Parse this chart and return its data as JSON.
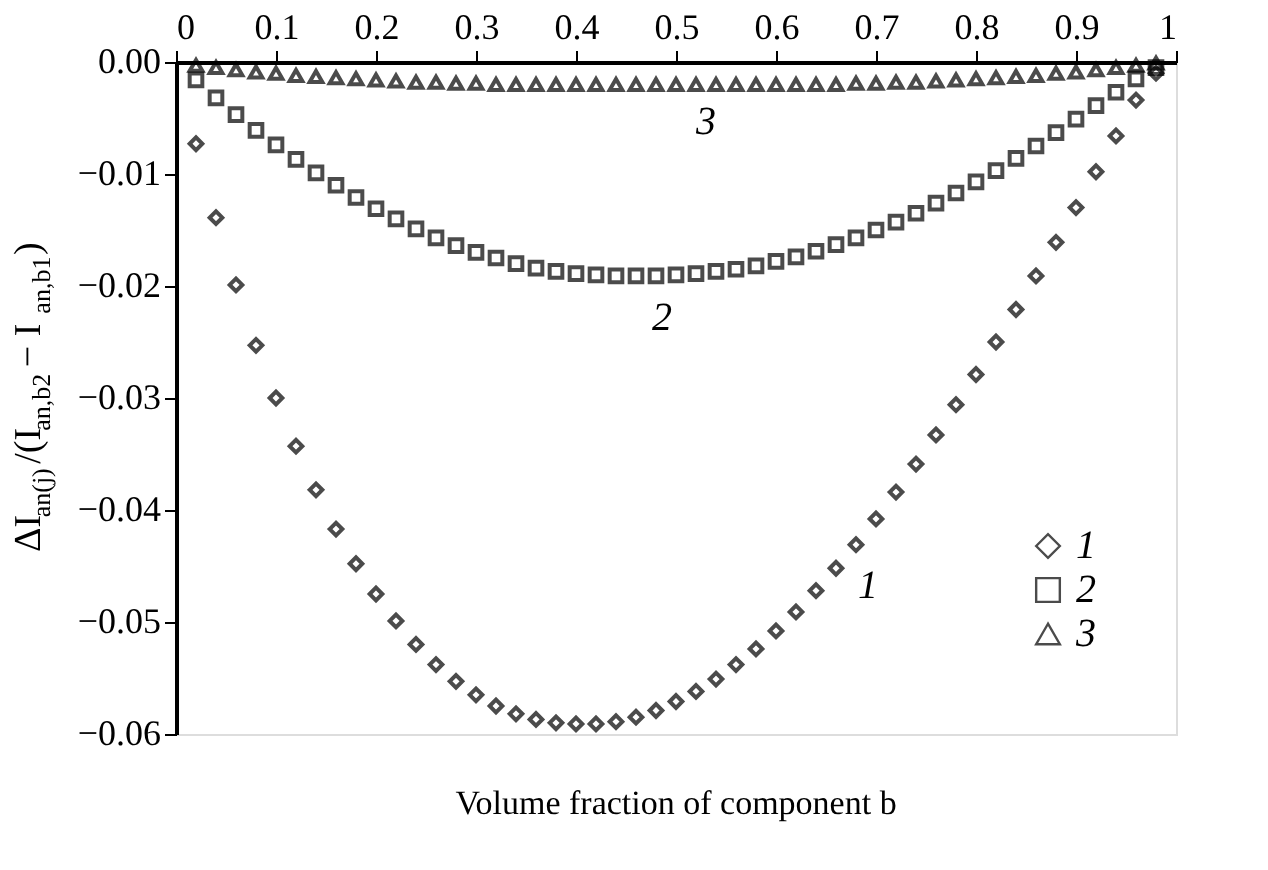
{
  "chart_data": {
    "type": "scatter",
    "xlabel": "Volume fraction of component b",
    "ylabel": "ΔI$_{an(j)}$/(I$_{an,b2}$ − I$_{an,b1}$)",
    "x": [
      0.02,
      0.04,
      0.06,
      0.08,
      0.1,
      0.12,
      0.14,
      0.16,
      0.18,
      0.2,
      0.22,
      0.24,
      0.26,
      0.28,
      0.3,
      0.32,
      0.34,
      0.36,
      0.38,
      0.4,
      0.42,
      0.44,
      0.46,
      0.48,
      0.5,
      0.52,
      0.54,
      0.56,
      0.58,
      0.6,
      0.62,
      0.64,
      0.66,
      0.68,
      0.7,
      0.72,
      0.74,
      0.76,
      0.78,
      0.8,
      0.82,
      0.84,
      0.86,
      0.88,
      0.9,
      0.92,
      0.94,
      0.96,
      0.98
    ],
    "series": [
      {
        "name": "1",
        "color": "#000000",
        "marker": "diamond",
        "values": [
          -0.0073,
          -0.0139,
          -0.0199,
          -0.0253,
          -0.03,
          -0.0343,
          -0.0382,
          -0.0417,
          -0.0448,
          -0.0475,
          -0.0499,
          -0.052,
          -0.0538,
          -0.0553,
          -0.0565,
          -0.0575,
          -0.0582,
          -0.0587,
          -0.059,
          -0.0591,
          -0.0591,
          -0.0589,
          -0.0585,
          -0.0579,
          -0.0571,
          -0.0562,
          -0.0551,
          -0.0538,
          -0.0524,
          -0.0508,
          -0.0491,
          -0.0472,
          -0.0452,
          -0.0431,
          -0.0408,
          -0.0384,
          -0.0359,
          -0.0333,
          -0.0306,
          -0.0279,
          -0.025,
          -0.0221,
          -0.0191,
          -0.0161,
          -0.013,
          -0.0098,
          -0.0066,
          -0.0034,
          -0.001
        ]
      },
      {
        "name": "2",
        "color": "#000000",
        "marker": "square",
        "values": [
          -0.0016,
          -0.0032,
          -0.0047,
          -0.0061,
          -0.0074,
          -0.0087,
          -0.0099,
          -0.011,
          -0.0121,
          -0.0131,
          -0.014,
          -0.0149,
          -0.0157,
          -0.0164,
          -0.017,
          -0.0175,
          -0.018,
          -0.0184,
          -0.0187,
          -0.0189,
          -0.019,
          -0.0191,
          -0.0191,
          -0.0191,
          -0.019,
          -0.0189,
          -0.0187,
          -0.0185,
          -0.0182,
          -0.0178,
          -0.0174,
          -0.0169,
          -0.0163,
          -0.0157,
          -0.015,
          -0.0143,
          -0.0135,
          -0.0126,
          -0.0117,
          -0.0107,
          -0.0097,
          -0.0086,
          -0.0075,
          -0.0063,
          -0.0051,
          -0.0039,
          -0.0027,
          -0.0015,
          -0.0005
        ]
      },
      {
        "name": "3",
        "color": "#000000",
        "marker": "triangle",
        "values": [
          -0.0003,
          -0.0005,
          -0.0007,
          -0.0009,
          -0.001,
          -0.0012,
          -0.0013,
          -0.0014,
          -0.0015,
          -0.0016,
          -0.0017,
          -0.0018,
          -0.0018,
          -0.0019,
          -0.0019,
          -0.002,
          -0.002,
          -0.002,
          -0.002,
          -0.002,
          -0.002,
          -0.002,
          -0.002,
          -0.002,
          -0.002,
          -0.002,
          -0.002,
          -0.002,
          -0.002,
          -0.002,
          -0.002,
          -0.002,
          -0.002,
          -0.0019,
          -0.0019,
          -0.0018,
          -0.0018,
          -0.0017,
          -0.0016,
          -0.0015,
          -0.0014,
          -0.0013,
          -0.0012,
          -0.001,
          -0.0009,
          -0.0007,
          -0.0005,
          -0.0003,
          -0.0001
        ]
      }
    ],
    "xlim": [
      0,
      1
    ],
    "xticks": [
      0,
      0.1,
      0.2,
      0.3,
      0.4,
      0.5,
      0.6,
      0.7,
      0.8,
      0.9,
      1
    ],
    "ylim": [
      -0.06,
      0
    ],
    "yticks": [
      {
        "value": 0,
        "label": "0.00"
      },
      {
        "value": -0.01,
        "label": "−0.01"
      },
      {
        "value": -0.02,
        "label": "−0.02"
      },
      {
        "value": -0.03,
        "label": "−0.03"
      },
      {
        "value": -0.04,
        "label": "−0.04"
      },
      {
        "value": -0.05,
        "label": "−0.05"
      },
      {
        "value": -0.06,
        "label": "−0.06"
      }
    ],
    "annotations": [
      "1",
      "2",
      "3"
    ],
    "legend": "bottom right",
    "grid": false
  }
}
